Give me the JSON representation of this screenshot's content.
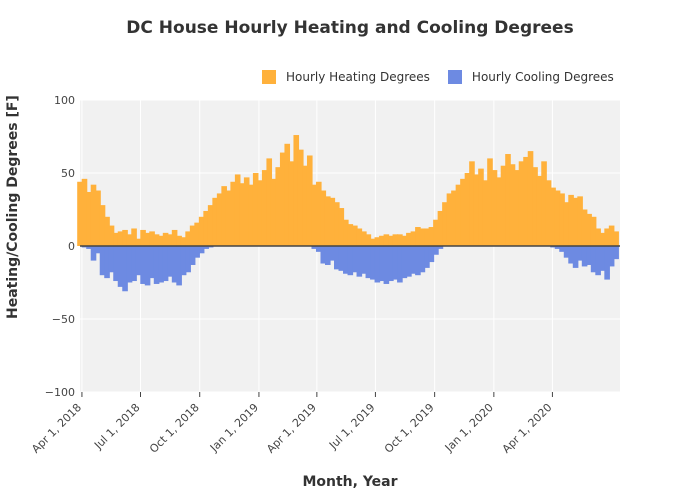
{
  "chart_data": {
    "type": "bar",
    "title": "DC House Hourly Heating and Cooling Degrees",
    "xlabel": "Month, Year",
    "ylabel": "Heating/Cooling Degrees [F]",
    "x_ticks": [
      "Apr 1, 2018",
      "Jul 1, 2018",
      "Oct 1, 2018",
      "Jan 1, 2019",
      "Apr 1, 2019",
      "Jul 1, 2019",
      "Oct 1, 2019",
      "Jan 1, 2020",
      "Apr 1, 2020"
    ],
    "y_ticks": [
      100,
      50,
      0,
      -50,
      -100
    ],
    "ylim": [
      -100,
      100
    ],
    "xlim": [
      "2018-03-29",
      "2020-07-15"
    ],
    "grid": true,
    "legend_position": "top-right",
    "series": [
      {
        "name": "Hourly Heating Degrees",
        "color": "#ffb13b",
        "x": [
          "2018-03-29",
          "2018-04-05",
          "2018-04-12",
          "2018-04-19",
          "2018-04-26",
          "2018-05-03",
          "2018-05-10",
          "2018-05-17",
          "2018-05-24",
          "2018-05-31",
          "2018-06-07",
          "2018-06-14",
          "2018-06-21",
          "2018-06-28",
          "2018-07-05",
          "2018-07-12",
          "2018-07-19",
          "2018-07-26",
          "2018-08-02",
          "2018-08-09",
          "2018-08-16",
          "2018-08-23",
          "2018-08-30",
          "2018-09-06",
          "2018-09-13",
          "2018-09-20",
          "2018-09-27",
          "2018-10-04",
          "2018-10-11",
          "2018-10-18",
          "2018-10-25",
          "2018-11-01",
          "2018-11-08",
          "2018-11-15",
          "2018-11-22",
          "2018-11-29",
          "2018-12-06",
          "2018-12-13",
          "2018-12-20",
          "2018-12-27",
          "2019-01-03",
          "2019-01-10",
          "2019-01-17",
          "2019-01-24",
          "2019-01-31",
          "2019-02-07",
          "2019-02-14",
          "2019-02-21",
          "2019-02-28",
          "2019-03-07",
          "2019-03-14",
          "2019-03-21",
          "2019-03-28",
          "2019-04-04",
          "2019-04-11",
          "2019-04-18",
          "2019-04-25",
          "2019-05-02",
          "2019-05-09",
          "2019-05-16",
          "2019-05-23",
          "2019-05-30",
          "2019-06-06",
          "2019-06-13",
          "2019-06-20",
          "2019-06-27",
          "2019-07-04",
          "2019-07-11",
          "2019-07-18",
          "2019-07-25",
          "2019-08-01",
          "2019-08-08",
          "2019-08-15",
          "2019-08-22",
          "2019-08-29",
          "2019-09-05",
          "2019-09-12",
          "2019-09-19",
          "2019-09-26",
          "2019-10-03",
          "2019-10-10",
          "2019-10-17",
          "2019-10-24",
          "2019-10-31",
          "2019-11-07",
          "2019-11-14",
          "2019-11-21",
          "2019-11-28",
          "2019-12-05",
          "2019-12-12",
          "2019-12-19",
          "2019-12-26",
          "2020-01-02",
          "2020-01-09",
          "2020-01-16",
          "2020-01-23",
          "2020-01-30",
          "2020-02-06",
          "2020-02-13",
          "2020-02-20",
          "2020-02-27",
          "2020-03-05",
          "2020-03-12",
          "2020-03-19",
          "2020-03-26",
          "2020-04-02",
          "2020-04-09",
          "2020-04-16",
          "2020-04-23",
          "2020-04-30",
          "2020-05-07",
          "2020-05-14",
          "2020-05-21",
          "2020-05-28",
          "2020-06-04",
          "2020-06-11",
          "2020-06-18",
          "2020-06-25",
          "2020-07-02",
          "2020-07-09"
        ],
        "values": [
          44,
          46,
          37,
          42,
          38,
          28,
          20,
          14,
          9,
          10,
          11,
          8,
          12,
          5,
          11,
          9,
          10,
          8,
          7,
          9,
          8,
          11,
          7,
          6,
          10,
          14,
          16,
          20,
          24,
          28,
          33,
          36,
          41,
          38,
          44,
          49,
          43,
          47,
          42,
          50,
          45,
          52,
          60,
          46,
          54,
          64,
          70,
          58,
          76,
          66,
          55,
          62,
          42,
          44,
          38,
          34,
          33,
          30,
          26,
          18,
          15,
          14,
          12,
          10,
          8,
          5,
          6,
          7,
          8,
          7,
          8,
          8,
          7,
          9,
          10,
          13,
          12,
          12,
          13,
          18,
          24,
          30,
          36,
          38,
          42,
          46,
          50,
          58,
          49,
          53,
          45,
          60,
          52,
          47,
          55,
          63,
          56,
          52,
          58,
          61,
          65,
          54,
          48,
          58,
          45,
          40,
          38,
          36,
          30,
          35,
          33,
          34,
          25,
          22,
          20,
          12,
          9,
          12,
          14,
          10
        ]
      },
      {
        "name": "Hourly Cooling Degrees",
        "color": "#6d8ae2",
        "x": [
          "2018-03-29",
          "2018-04-05",
          "2018-04-12",
          "2018-04-19",
          "2018-04-26",
          "2018-05-03",
          "2018-05-10",
          "2018-05-17",
          "2018-05-24",
          "2018-05-31",
          "2018-06-07",
          "2018-06-14",
          "2018-06-21",
          "2018-06-28",
          "2018-07-05",
          "2018-07-12",
          "2018-07-19",
          "2018-07-26",
          "2018-08-02",
          "2018-08-09",
          "2018-08-16",
          "2018-08-23",
          "2018-08-30",
          "2018-09-06",
          "2018-09-13",
          "2018-09-20",
          "2018-09-27",
          "2018-10-04",
          "2018-10-11",
          "2018-10-18",
          "2018-10-25",
          "2018-11-01",
          "2018-11-08",
          "2018-11-15",
          "2018-11-22",
          "2018-11-29",
          "2018-12-06",
          "2018-12-13",
          "2018-12-20",
          "2018-12-27",
          "2019-01-03",
          "2019-01-10",
          "2019-01-17",
          "2019-01-24",
          "2019-01-31",
          "2019-02-07",
          "2019-02-14",
          "2019-02-21",
          "2019-02-28",
          "2019-03-07",
          "2019-03-14",
          "2019-03-21",
          "2019-03-28",
          "2019-04-04",
          "2019-04-11",
          "2019-04-18",
          "2019-04-25",
          "2019-05-02",
          "2019-05-09",
          "2019-05-16",
          "2019-05-23",
          "2019-05-30",
          "2019-06-06",
          "2019-06-13",
          "2019-06-20",
          "2019-06-27",
          "2019-07-04",
          "2019-07-11",
          "2019-07-18",
          "2019-07-25",
          "2019-08-01",
          "2019-08-08",
          "2019-08-15",
          "2019-08-22",
          "2019-08-29",
          "2019-09-05",
          "2019-09-12",
          "2019-09-19",
          "2019-09-26",
          "2019-10-03",
          "2019-10-10",
          "2019-10-17",
          "2019-10-24",
          "2019-10-31",
          "2019-11-07",
          "2019-11-14",
          "2019-11-21",
          "2019-11-28",
          "2019-12-05",
          "2019-12-12",
          "2019-12-19",
          "2019-12-26",
          "2020-01-02",
          "2020-01-09",
          "2020-01-16",
          "2020-01-23",
          "2020-01-30",
          "2020-02-06",
          "2020-02-13",
          "2020-02-20",
          "2020-02-27",
          "2020-03-05",
          "2020-03-12",
          "2020-03-19",
          "2020-03-26",
          "2020-04-02",
          "2020-04-09",
          "2020-04-16",
          "2020-04-23",
          "2020-04-30",
          "2020-05-07",
          "2020-05-14",
          "2020-05-21",
          "2020-05-28",
          "2020-06-04",
          "2020-06-11",
          "2020-06-18",
          "2020-06-25",
          "2020-07-02",
          "2020-07-09"
        ],
        "values": [
          0,
          -1,
          -2,
          -10,
          -5,
          -20,
          -22,
          -18,
          -24,
          -28,
          -31,
          -25,
          -24,
          -20,
          -26,
          -27,
          -22,
          -26,
          -25,
          -24,
          -21,
          -25,
          -27,
          -20,
          -18,
          -13,
          -8,
          -5,
          -2,
          -1,
          0,
          0,
          0,
          0,
          0,
          0,
          0,
          0,
          0,
          0,
          0,
          0,
          0,
          0,
          0,
          0,
          0,
          0,
          0,
          0,
          0,
          0,
          -2,
          -4,
          -12,
          -13,
          -10,
          -16,
          -17,
          -19,
          -20,
          -18,
          -21,
          -19,
          -22,
          -23,
          -25,
          -24,
          -26,
          -24,
          -23,
          -25,
          -22,
          -21,
          -19,
          -20,
          -18,
          -15,
          -11,
          -6,
          -2,
          0,
          0,
          0,
          0,
          0,
          0,
          0,
          0,
          0,
          0,
          0,
          0,
          0,
          0,
          0,
          0,
          0,
          0,
          0,
          0,
          0,
          0,
          0,
          0,
          -1,
          -2,
          -4,
          -8,
          -12,
          -15,
          -10,
          -14,
          -13,
          -18,
          -20,
          -17,
          -23,
          -14,
          -9
        ]
      }
    ]
  }
}
